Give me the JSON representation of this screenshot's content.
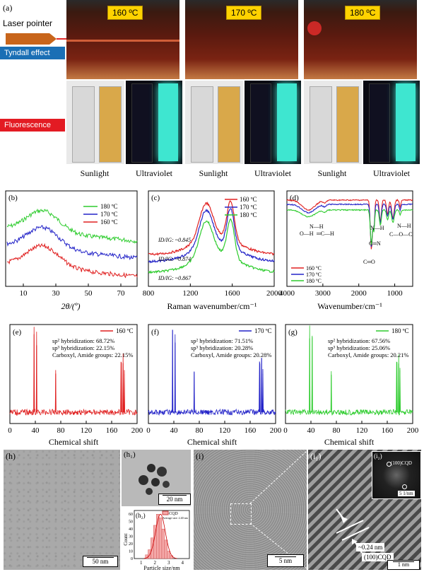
{
  "panel_a": {
    "label": "(a)",
    "side_labels": {
      "laser": "Laser pointer",
      "tyndall": "Tyndall effect",
      "fluorescence": "Fluorescence"
    },
    "temps": [
      "160 ºC",
      "170 ºC",
      "180 ºC"
    ],
    "light_labels": [
      "Sunlight",
      "Ultraviolet",
      "Sunlight",
      "Ultraviolet",
      "Sunlight",
      "Ultraviolet"
    ],
    "colors": {
      "tyndall_tag": "#1a6fb5",
      "fluor_tag": "#e31b23",
      "laser_arrow": "#c8651b",
      "fluor_cyan": "#3ee6d0",
      "solution": "#6b1c12"
    }
  },
  "panel_b": {
    "label": "(b)",
    "chart_data": {
      "type": "line",
      "title": "",
      "xlabel": "2θ/(º)",
      "ylabel": "",
      "xlim": [
        0,
        80
      ],
      "xticks": [
        10,
        30,
        50,
        70
      ],
      "series": [
        {
          "name": "180 ºC",
          "color": "#2ecc2e"
        },
        {
          "name": "170 ºC",
          "color": "#2323c8"
        },
        {
          "name": "160 ºC",
          "color": "#e02020"
        }
      ]
    }
  },
  "panel_c": {
    "label": "(c)",
    "chart_data": {
      "type": "line",
      "xlabel": "Raman wavenumber/cm⁻¹",
      "xlim": [
        800,
        2000
      ],
      "xticks": [
        800,
        1200,
        1600,
        2000
      ],
      "series": [
        {
          "name": "160 ºC",
          "color": "#e02020",
          "ratio": "ID/IG: ~0.845"
        },
        {
          "name": "170 ºC",
          "color": "#2323c8",
          "ratio": "ID/IG: ~0.874"
        },
        {
          "name": "180 ºC",
          "color": "#2ecc2e",
          "ratio": "ID/IG: ~0.867"
        }
      ]
    }
  },
  "panel_d": {
    "label": "(d)",
    "chart_data": {
      "type": "line",
      "xlabel": "Wavenumber/cm⁻¹",
      "xlim": [
        4000,
        500
      ],
      "xticks": [
        4000,
        3000,
        2000,
        1000
      ],
      "series": [
        {
          "name": "160 ºC",
          "color": "#e02020"
        },
        {
          "name": "170 ºC",
          "color": "#2323c8"
        },
        {
          "name": "180 ºC",
          "color": "#2ecc2e"
        }
      ],
      "annotations": [
        "N—H",
        "O—H",
        "═C—H",
        "N—H",
        "C═N",
        "C═O",
        "N—H",
        "C—O—C"
      ]
    }
  },
  "panel_efg": {
    "xlabel": "Chemical shift",
    "xticks": [
      0,
      40,
      80,
      120,
      160,
      200
    ],
    "panels": [
      {
        "label": "(e)",
        "legend": "160 ºC",
        "color": "#e02020",
        "sp2": "sp² hybridization: 68.72%",
        "sp3": "sp³ hybridization: 22.15%",
        "carb": "Carboxyl, Amide groups: 22.15%"
      },
      {
        "label": "(f)",
        "legend": "170 ºC",
        "color": "#2323c8",
        "sp2": "sp² hybridization: 71.51%",
        "sp3": "sp³ hybridization: 20.28%",
        "carb": "Carboxyl, Amide groups: 20.28%"
      },
      {
        "label": "(g)",
        "legend": "180 ºC",
        "color": "#2ecc2e",
        "sp2": "sp² hybridization: 67.56%",
        "sp3": "sp³ hybridization: 25.06%",
        "carb": "Carboxyl, Amide groups: 20.21%"
      }
    ]
  },
  "panel_h": {
    "label": "(h)",
    "scale": "50 nm",
    "h1": {
      "label": "(h₁)",
      "scale": "20 nm"
    },
    "h2": {
      "label": "(h₂)",
      "legend": "CQD",
      "legend_sub": "Average size: 2.40 nm",
      "xlabel": "Particle size/nm",
      "ylabel": "Count",
      "chart_data": {
        "type": "bar",
        "categories": [
          "1.4",
          "1.6",
          "1.8",
          "2.0",
          "2.2",
          "2.4",
          "2.6",
          "2.8",
          "3.0",
          "3.2"
        ],
        "values": [
          5,
          12,
          28,
          45,
          60,
          55,
          40,
          25,
          10,
          4
        ],
        "xticks": [
          1,
          2,
          3,
          4
        ],
        "yticks": [
          0,
          10,
          20,
          30,
          40,
          50,
          60
        ]
      }
    }
  },
  "panel_i": {
    "label": "(i)",
    "scale": "5 nm",
    "i1": {
      "label": "(i₁)",
      "scale": "1 nm",
      "spacing": "~0.24 nm",
      "plane": "(100)CQD"
    },
    "i2": {
      "label": "(i₂)",
      "plane": "(100)CQD",
      "scale": "5 1/nm"
    }
  }
}
